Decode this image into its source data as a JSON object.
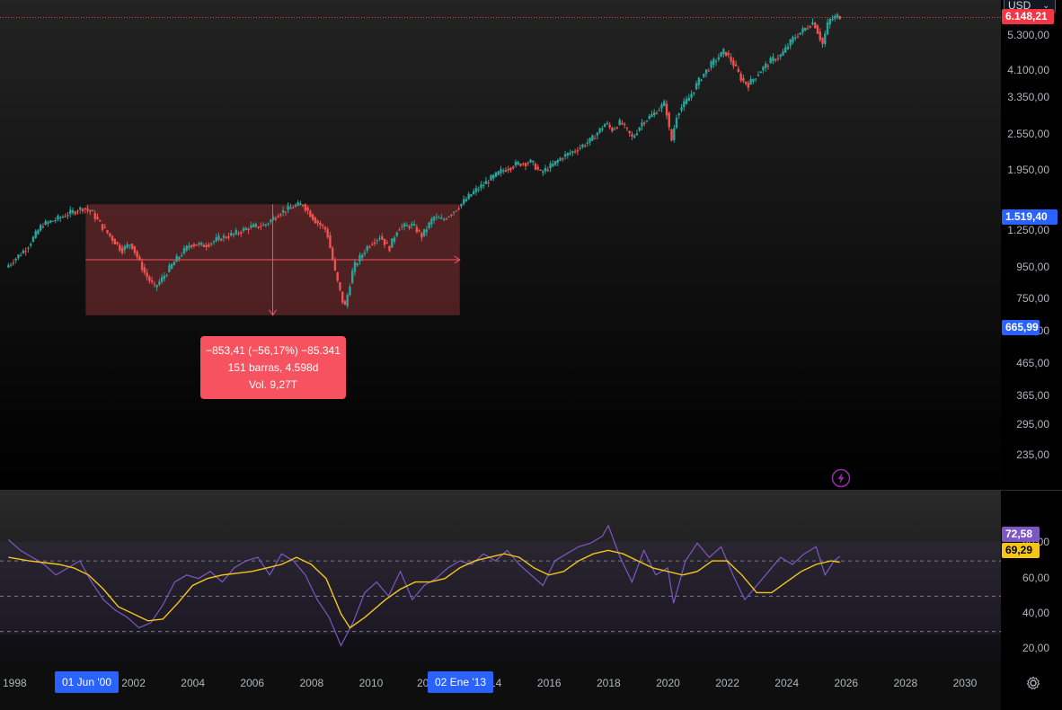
{
  "currency": {
    "label": "USD",
    "chevron_icon": "chevron-down-icon"
  },
  "last_price_tag": {
    "label": "6.148,21",
    "color": "#f23645"
  },
  "price_axis": [
    "5.300,00",
    "4.100,00",
    "3.350,00",
    "2.550,00",
    "1.950,00",
    "1.250,00",
    "950,00",
    "750,00",
    "590,00",
    "465,00",
    "365,00",
    "295,00",
    "235,00"
  ],
  "range_tags": [
    {
      "label": "1.519,40",
      "color": "#2962ff"
    },
    {
      "label": "665,99",
      "color": "#2962ff"
    }
  ],
  "rsi_axis": [
    "80,00",
    "60,00",
    "40,00",
    "20,00"
  ],
  "rsi_tags": [
    {
      "label": "72,58",
      "color": "#7e57c2"
    },
    {
      "label": "69,29",
      "color": "#f5c518"
    }
  ],
  "time_axis": [
    "1998",
    "2002",
    "2004",
    "2006",
    "2008",
    "2010",
    "20",
    "14",
    "2016",
    "2018",
    "2020",
    "2022",
    "2024",
    "2026",
    "2028",
    "2030"
  ],
  "date_tags": [
    "01 Jun '00",
    "02 Ene '13"
  ],
  "measure": {
    "line1": "−853,41 (−56,17%) −85.341",
    "line2": "151 barras, 4.598d",
    "line3": "Vol. 9,27T"
  },
  "colors": {
    "up": "#26a69a",
    "down": "#ef5350",
    "rsi": "#7e57c2",
    "rsi_ma": "#f5c518",
    "range_fill": "#5a2426",
    "range_line": "#f7525f"
  },
  "icons": {
    "settings": "gear-icon",
    "alert": "lightning-icon"
  },
  "chart_data": [
    {
      "type": "line",
      "title": "",
      "scale": "log",
      "ylim": [
        215,
        6150
      ],
      "x": [
        1997.8,
        1998.5,
        1999.0,
        1999.5,
        2000.0,
        2000.4,
        2000.7,
        2001.0,
        2001.3,
        2001.7,
        2002.0,
        2002.5,
        2002.8,
        2003.0,
        2003.5,
        2004.0,
        2004.5,
        2005.0,
        2005.5,
        2006.0,
        2006.5,
        2007.0,
        2007.5,
        2007.8,
        2008.2,
        2008.6,
        2008.9,
        2009.2,
        2009.5,
        2010.0,
        2010.4,
        2010.7,
        2011.0,
        2011.5,
        2011.8,
        2012.2,
        2012.5,
        2013.0,
        2013.5,
        2014.0,
        2014.5,
        2015.0,
        2015.5,
        2015.8,
        2016.2,
        2016.5,
        2017.0,
        2017.5,
        2018.0,
        2018.2,
        2018.5,
        2018.9,
        2019.2,
        2019.6,
        2020.0,
        2020.2,
        2020.4,
        2020.8,
        2021.2,
        2021.6,
        2022.0,
        2022.3,
        2022.6,
        2022.8,
        2023.2,
        2023.6,
        2023.9,
        2024.3,
        2024.7,
        2025.0,
        2025.3,
        2025.5,
        2025.8
      ],
      "y": [
        950,
        1100,
        1300,
        1360,
        1430,
        1480,
        1430,
        1300,
        1200,
        1080,
        1140,
        900,
        820,
        860,
        1000,
        1130,
        1120,
        1180,
        1220,
        1280,
        1300,
        1420,
        1500,
        1520,
        1350,
        1250,
        900,
        700,
        950,
        1120,
        1200,
        1090,
        1280,
        1300,
        1200,
        1380,
        1350,
        1480,
        1650,
        1800,
        1950,
        2050,
        2080,
        1920,
        2030,
        2150,
        2280,
        2450,
        2780,
        2640,
        2800,
        2480,
        2780,
        2970,
        3230,
        2400,
        3000,
        3350,
        3900,
        4350,
        4750,
        4300,
        3800,
        3700,
        4100,
        4450,
        4600,
        5200,
        5600,
        5900,
        5000,
        5950,
        6150
      ],
      "highlight": {
        "x_start": 2000.4,
        "x_end": 2013.0
      }
    },
    {
      "type": "line",
      "title": "",
      "ylim": [
        15,
        95
      ],
      "hlines": [
        70,
        50,
        30
      ],
      "series": [
        {
          "values_x": [
            1997.8,
            1998.2,
            1998.6,
            1999.0,
            1999.4,
            1999.8,
            2000.2,
            2000.6,
            2001.0,
            2001.4,
            2001.8,
            2002.2,
            2002.6,
            2003.0,
            2003.4,
            2003.8,
            2004.2,
            2004.6,
            2005.0,
            2005.4,
            2005.8,
            2006.2,
            2006.6,
            2007.0,
            2007.4,
            2007.8,
            2008.2,
            2008.6,
            2009.0,
            2009.4,
            2009.8,
            2010.2,
            2010.6,
            2011.0,
            2011.4,
            2011.8,
            2012.2,
            2012.6,
            2013.0,
            2013.4,
            2013.8,
            2014.2,
            2014.6,
            2015.0,
            2015.4,
            2015.8,
            2016.2,
            2016.6,
            2017.0,
            2017.4,
            2017.8,
            2018.0,
            2018.4,
            2018.8,
            2019.2,
            2019.6,
            2020.0,
            2020.2,
            2020.6,
            2021.0,
            2021.4,
            2021.8,
            2022.2,
            2022.6,
            2023.0,
            2023.4,
            2023.8,
            2024.2,
            2024.6,
            2025.0,
            2025.3,
            2025.6,
            2025.8
          ],
          "values": [
            82,
            76,
            72,
            68,
            62,
            66,
            70,
            58,
            48,
            42,
            38,
            32,
            35,
            45,
            58,
            62,
            60,
            64,
            58,
            66,
            70,
            72,
            62,
            74,
            70,
            62,
            48,
            38,
            22,
            35,
            52,
            58,
            50,
            64,
            48,
            56,
            60,
            66,
            70,
            68,
            74,
            70,
            76,
            68,
            62,
            56,
            70,
            74,
            78,
            80,
            84,
            90,
            72,
            58,
            76,
            62,
            66,
            46,
            70,
            80,
            72,
            78,
            62,
            48,
            56,
            64,
            72,
            68,
            74,
            78,
            62,
            70,
            72.58
          ]
        },
        {
          "values_x": [
            1997.8,
            1998.5,
            1999.0,
            1999.5,
            2000.0,
            2000.5,
            2001.0,
            2001.5,
            2002.0,
            2002.5,
            2003.0,
            2003.5,
            2004.0,
            2004.5,
            2005.0,
            2005.5,
            2006.0,
            2006.5,
            2007.0,
            2007.5,
            2008.0,
            2008.5,
            2009.0,
            2009.3,
            2009.8,
            2010.5,
            2011.0,
            2011.5,
            2012.0,
            2012.5,
            2013.0,
            2013.5,
            2014.0,
            2014.5,
            2015.0,
            2015.5,
            2016.0,
            2016.5,
            2017.0,
            2017.5,
            2018.0,
            2018.5,
            2019.0,
            2019.5,
            2020.0,
            2020.5,
            2021.0,
            2021.5,
            2022.0,
            2022.5,
            2023.0,
            2023.5,
            2024.0,
            2024.5,
            2025.0,
            2025.5,
            2025.8
          ],
          "values": [
            72,
            70,
            69,
            68,
            66,
            62,
            54,
            44,
            40,
            36,
            37,
            46,
            56,
            60,
            62,
            63,
            64,
            66,
            68,
            72,
            68,
            60,
            40,
            32,
            38,
            48,
            54,
            58,
            58,
            60,
            66,
            70,
            72,
            74,
            72,
            66,
            62,
            64,
            70,
            74,
            76,
            74,
            70,
            66,
            64,
            62,
            64,
            70,
            70,
            62,
            52,
            52,
            58,
            64,
            68,
            70,
            69.29
          ]
        }
      ]
    }
  ]
}
